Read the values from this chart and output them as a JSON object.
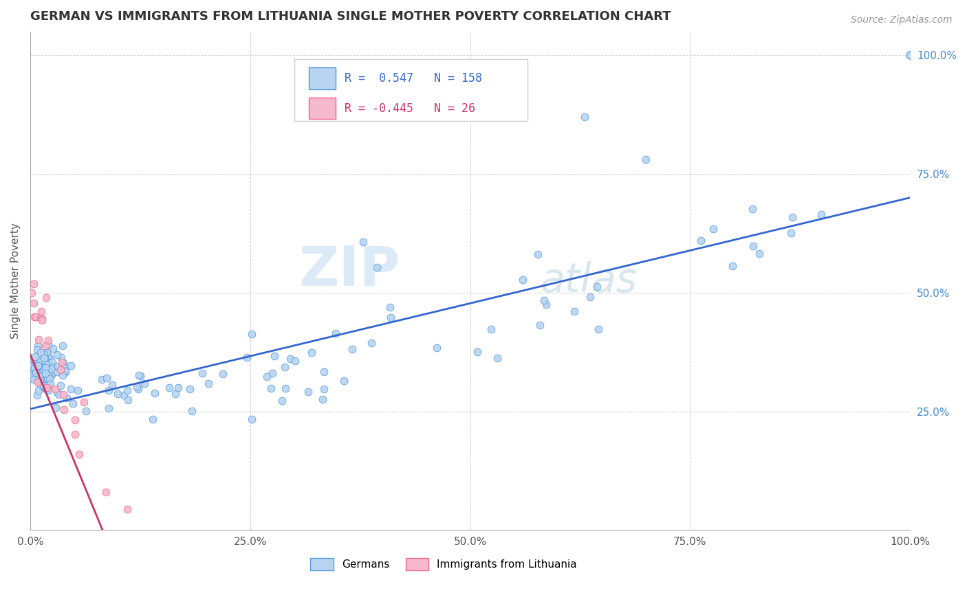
{
  "title": "GERMAN VS IMMIGRANTS FROM LITHUANIA SINGLE MOTHER POVERTY CORRELATION CHART",
  "source": "Source: ZipAtlas.com",
  "ylabel": "Single Mother Poverty",
  "xlim": [
    0.0,
    1.0
  ],
  "ylim": [
    0.0,
    1.05
  ],
  "xtick_labels": [
    "0.0%",
    "25.0%",
    "50.0%",
    "75.0%",
    "100.0%"
  ],
  "xtick_positions": [
    0.0,
    0.25,
    0.5,
    0.75,
    1.0
  ],
  "ytick_labels": [
    "25.0%",
    "50.0%",
    "75.0%",
    "100.0%"
  ],
  "ytick_positions": [
    0.25,
    0.5,
    0.75,
    1.0
  ],
  "german_color": "#b8d4f0",
  "german_edge_color": "#5599dd",
  "german_line_color": "#3366cc",
  "lithuania_color": "#f5b8cc",
  "lithuania_edge_color": "#ee6688",
  "lithuania_line_color": "#cc3366",
  "R_german": 0.547,
  "N_german": 158,
  "R_lithuania": -0.445,
  "N_lithuania": 26,
  "watermark_zip": "ZIP",
  "watermark_atlas": "atlas",
  "legend_label_1": "Germans",
  "legend_label_2": "Immigrants from Lithuania",
  "grid_color": "#aaaaaa",
  "title_color": "#333333",
  "tick_color": "#555555",
  "right_tick_color": "#4488cc"
}
